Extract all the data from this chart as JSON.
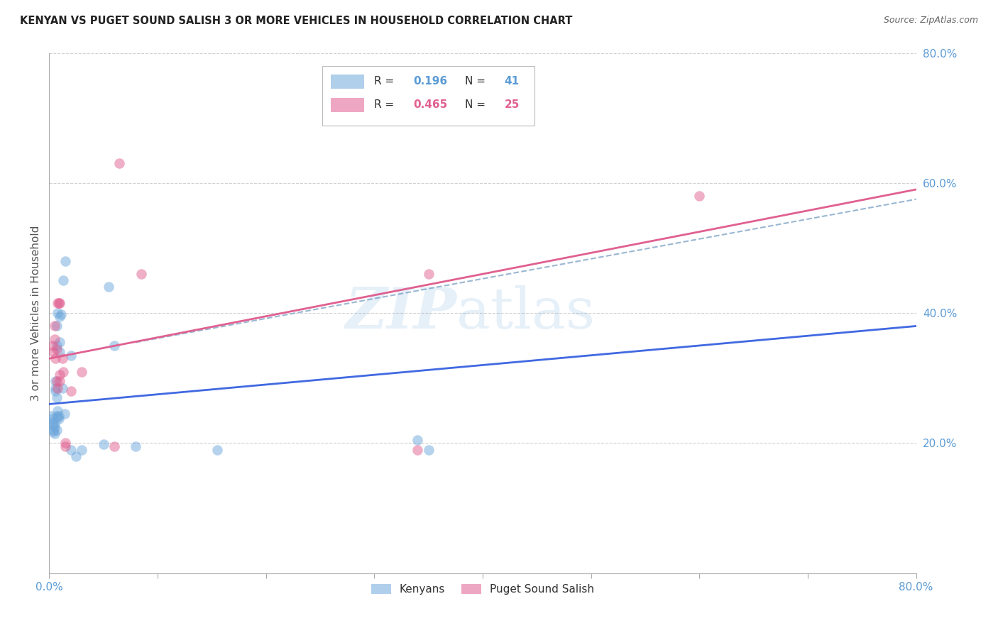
{
  "title": "KENYAN VS PUGET SOUND SALISH 3 OR MORE VEHICLES IN HOUSEHOLD CORRELATION CHART",
  "source": "Source: ZipAtlas.com",
  "ylabel": "3 or more Vehicles in Household",
  "legend_labels": [
    "Kenyans",
    "Puget Sound Salish"
  ],
  "r_kenyan": 0.196,
  "n_kenyan": 41,
  "r_salish": 0.465,
  "n_salish": 25,
  "xlim": [
    0.0,
    0.8
  ],
  "ylim": [
    0.0,
    0.8
  ],
  "yticks_right": [
    0.2,
    0.4,
    0.6,
    0.8
  ],
  "blue_color": "#6fa8dc",
  "pink_color": "#e06090",
  "blue_line_color": "#4169E1",
  "pink_line_color": "#e06090",
  "dash_color": "#9ab7d3",
  "blue_scatter": [
    [
      0.002,
      0.242
    ],
    [
      0.003,
      0.238
    ],
    [
      0.003,
      0.232
    ],
    [
      0.004,
      0.228
    ],
    [
      0.004,
      0.22
    ],
    [
      0.004,
      0.218
    ],
    [
      0.005,
      0.215
    ],
    [
      0.005,
      0.225
    ],
    [
      0.005,
      0.23
    ],
    [
      0.006,
      0.28
    ],
    [
      0.006,
      0.285
    ],
    [
      0.006,
      0.295
    ],
    [
      0.007,
      0.242
    ],
    [
      0.007,
      0.22
    ],
    [
      0.007,
      0.27
    ],
    [
      0.007,
      0.35
    ],
    [
      0.007,
      0.38
    ],
    [
      0.008,
      0.24
    ],
    [
      0.008,
      0.25
    ],
    [
      0.008,
      0.4
    ],
    [
      0.009,
      0.238
    ],
    [
      0.009,
      0.242
    ],
    [
      0.01,
      0.34
    ],
    [
      0.01,
      0.355
    ],
    [
      0.01,
      0.395
    ],
    [
      0.011,
      0.398
    ],
    [
      0.012,
      0.285
    ],
    [
      0.013,
      0.45
    ],
    [
      0.014,
      0.245
    ],
    [
      0.015,
      0.48
    ],
    [
      0.02,
      0.335
    ],
    [
      0.02,
      0.19
    ],
    [
      0.025,
      0.18
    ],
    [
      0.03,
      0.19
    ],
    [
      0.05,
      0.198
    ],
    [
      0.055,
      0.44
    ],
    [
      0.06,
      0.35
    ],
    [
      0.08,
      0.195
    ],
    [
      0.155,
      0.19
    ],
    [
      0.34,
      0.205
    ],
    [
      0.35,
      0.19
    ]
  ],
  "pink_scatter": [
    [
      0.003,
      0.35
    ],
    [
      0.004,
      0.34
    ],
    [
      0.005,
      0.36
    ],
    [
      0.005,
      0.38
    ],
    [
      0.006,
      0.33
    ],
    [
      0.007,
      0.295
    ],
    [
      0.007,
      0.345
    ],
    [
      0.008,
      0.285
    ],
    [
      0.008,
      0.415
    ],
    [
      0.009,
      0.415
    ],
    [
      0.01,
      0.415
    ],
    [
      0.01,
      0.295
    ],
    [
      0.01,
      0.305
    ],
    [
      0.012,
      0.33
    ],
    [
      0.013,
      0.31
    ],
    [
      0.015,
      0.195
    ],
    [
      0.015,
      0.2
    ],
    [
      0.02,
      0.28
    ],
    [
      0.03,
      0.31
    ],
    [
      0.06,
      0.195
    ],
    [
      0.065,
      0.63
    ],
    [
      0.085,
      0.46
    ],
    [
      0.34,
      0.19
    ],
    [
      0.35,
      0.46
    ],
    [
      0.6,
      0.58
    ]
  ],
  "blue_line": [
    [
      0.0,
      0.26
    ],
    [
      0.8,
      0.38
    ]
  ],
  "pink_line": [
    [
      0.0,
      0.33
    ],
    [
      0.8,
      0.59
    ]
  ],
  "dash_line": [
    [
      0.08,
      0.355
    ],
    [
      0.8,
      0.575
    ]
  ]
}
